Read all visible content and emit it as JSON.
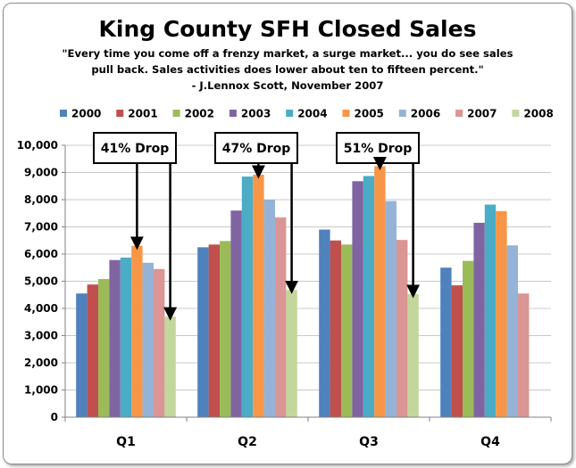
{
  "chart_data": {
    "type": "bar",
    "title": "King County SFH Closed Sales",
    "subtitle_lines": [
      "\"Every time you come off a frenzy market, a surge market... you do see sales",
      "pull back. Sales activities does lower about ten to fifteen percent.\"",
      "- J.Lennox Scott,  November 2007"
    ],
    "categories": [
      "Q1",
      "Q2",
      "Q3",
      "Q4"
    ],
    "ylim": [
      0,
      10000
    ],
    "yticks": [
      "0",
      "1,000",
      "2,000",
      "3,000",
      "4,000",
      "5,000",
      "6,000",
      "7,000",
      "8,000",
      "9,000",
      "10,000"
    ],
    "legend_position": "top",
    "series": [
      {
        "name": "2000",
        "color": "#4F81BD",
        "values": [
          4550,
          6250,
          6900,
          5500
        ]
      },
      {
        "name": "2001",
        "color": "#C0504D",
        "values": [
          4880,
          6350,
          6500,
          4850
        ]
      },
      {
        "name": "2002",
        "color": "#9BBB59",
        "values": [
          5080,
          6480,
          6350,
          5750
        ]
      },
      {
        "name": "2003",
        "color": "#8064A2",
        "values": [
          5780,
          7600,
          8680,
          7150
        ]
      },
      {
        "name": "2004",
        "color": "#4BACC6",
        "values": [
          5870,
          8850,
          8870,
          7820
        ]
      },
      {
        "name": "2005",
        "color": "#F79646",
        "values": [
          6300,
          8920,
          9230,
          7580
        ]
      },
      {
        "name": "2006",
        "color": "#95B3D7",
        "values": [
          5680,
          8000,
          7950,
          6320
        ]
      },
      {
        "name": "2007",
        "color": "#D99694",
        "values": [
          5450,
          7350,
          6520,
          4550
        ]
      },
      {
        "name": "2008",
        "color": "#C3D69B",
        "values": [
          3700,
          4680,
          4530,
          null
        ]
      }
    ],
    "annotations": [
      {
        "text": "41% Drop",
        "category": "Q1",
        "from_series": "2005",
        "to_series": "2008"
      },
      {
        "text": "47% Drop",
        "category": "Q2",
        "from_series": "2005",
        "to_series": "2008"
      },
      {
        "text": "51% Drop",
        "category": "Q3",
        "from_series": "2005",
        "to_series": "2008"
      }
    ]
  }
}
